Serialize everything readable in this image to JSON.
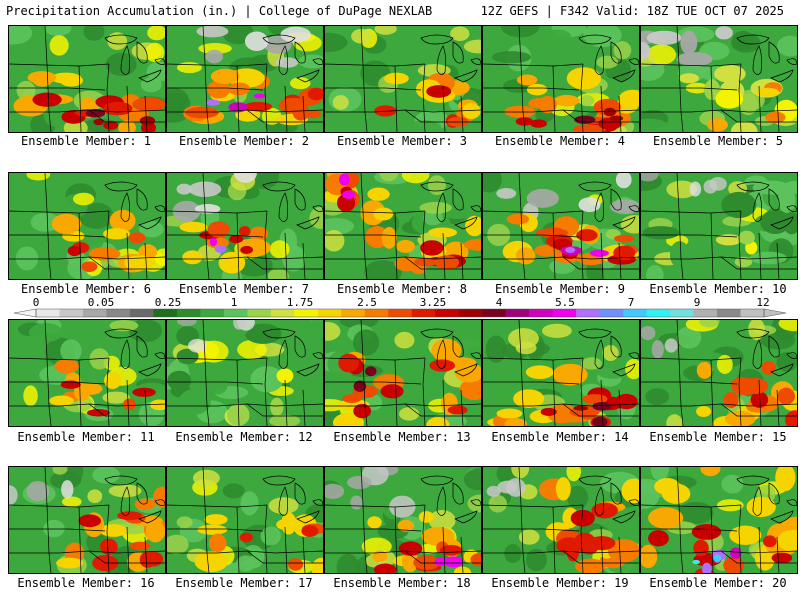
{
  "header": {
    "title": "Precipitation Accumulation (in.) | College of DuPage NEXLAB",
    "run_info": "12Z GEFS | F342 Valid: 18Z TUE OCT 07 2025"
  },
  "colorbar": {
    "labels": [
      "0",
      "0.05",
      "0.25",
      "1",
      "1.75",
      "2.5",
      "3.25",
      "4",
      "5.5",
      "7",
      "9",
      "12"
    ],
    "colors": [
      "#e8e8e8",
      "#c8c8c8",
      "#a8a8a8",
      "#888888",
      "#6a6a6a",
      "#1f6f1f",
      "#2e8b2e",
      "#3da83d",
      "#5cc35c",
      "#9ad24a",
      "#cfe040",
      "#f4f400",
      "#f6d400",
      "#f8a800",
      "#f57c00",
      "#ee4a00",
      "#e01a00",
      "#c80000",
      "#a00000",
      "#7a0020",
      "#a0007a",
      "#d000c0",
      "#f000f0",
      "#b070ff",
      "#7090ff",
      "#40c8ff",
      "#30f0f0",
      "#70e0e0",
      "#b0b0b0",
      "#8a8a8a",
      "#c0c0c0"
    ]
  },
  "members": [
    {
      "label": "Ensemble Member: 1",
      "pattern": "south-heavy"
    },
    {
      "label": "Ensemble Member: 2",
      "pattern": "band-magenta"
    },
    {
      "label": "Ensemble Member: 3",
      "pattern": "moderate"
    },
    {
      "label": "Ensemble Member: 4",
      "pattern": "south-heavy"
    },
    {
      "label": "Ensemble Member: 5",
      "pattern": "dry-north"
    },
    {
      "label": "Ensemble Member: 6",
      "pattern": "moderate"
    },
    {
      "label": "Ensemble Member: 7",
      "pattern": "west-core"
    },
    {
      "label": "Ensemble Member: 8",
      "pattern": "north-magenta"
    },
    {
      "label": "Ensemble Member: 9",
      "pattern": "band-magenta"
    },
    {
      "label": "Ensemble Member: 10",
      "pattern": "wet-green"
    },
    {
      "label": "Ensemble Member: 11",
      "pattern": "moderate"
    },
    {
      "label": "Ensemble Member: 12",
      "pattern": "wet-green"
    },
    {
      "label": "Ensemble Member: 13",
      "pattern": "central-red"
    },
    {
      "label": "Ensemble Member: 14",
      "pattern": "south-heavy"
    },
    {
      "label": "Ensemble Member: 15",
      "pattern": "east-red"
    },
    {
      "label": "Ensemble Member: 16",
      "pattern": "east-red"
    },
    {
      "label": "Ensemble Member: 17",
      "pattern": "moderate"
    },
    {
      "label": "Ensemble Member: 18",
      "pattern": "south-magenta"
    },
    {
      "label": "Ensemble Member: 19",
      "pattern": "east-red"
    },
    {
      "label": "Ensemble Member: 20",
      "pattern": "warm-cyan"
    }
  ]
}
